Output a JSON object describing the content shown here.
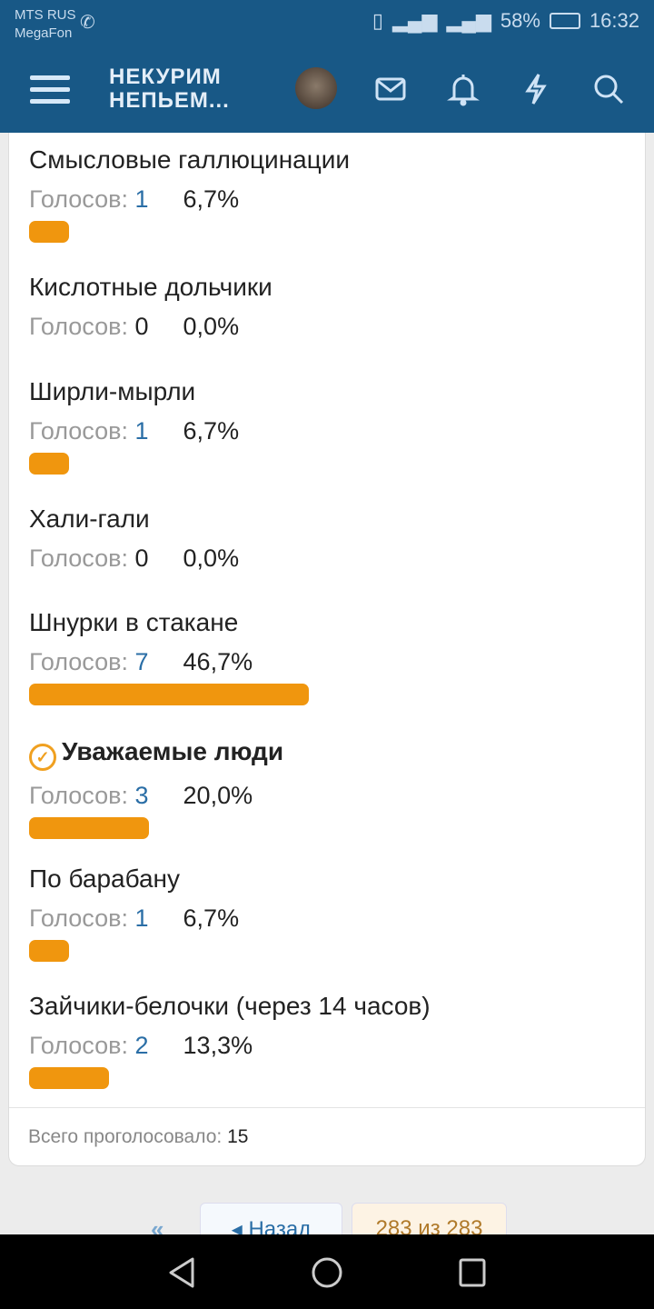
{
  "status": {
    "carrier1": "MTS RUS",
    "carrier2": "MegaFon",
    "battery": "58%",
    "time": "16:32"
  },
  "header": {
    "logo_line1": "НЕКУРИМ",
    "logo_line2": "НЕПЬЕМ..."
  },
  "poll": {
    "votes_label": "Голосов:",
    "options": [
      {
        "title": "Смысловые галлюцинации",
        "votes": "1",
        "percent": "6,7%",
        "value": 6.7
      },
      {
        "title": "Кислотные дольчики",
        "votes": "0",
        "percent": "0,0%",
        "value": 0
      },
      {
        "title": "Ширли-мырли",
        "votes": "1",
        "percent": "6,7%",
        "value": 6.7
      },
      {
        "title": "Хали-гали",
        "votes": "0",
        "percent": "0,0%",
        "value": 0
      },
      {
        "title": "Шнурки в стакане",
        "votes": "7",
        "percent": "46,7%",
        "value": 46.7
      },
      {
        "title": "Уважаемые люди",
        "votes": "3",
        "percent": "20,0%",
        "value": 20.0,
        "selected": true
      },
      {
        "title": "По барабану",
        "votes": "1",
        "percent": "6,7%",
        "value": 6.7
      },
      {
        "title": "Зайчики-белочки (через 14 часов)",
        "votes": "2",
        "percent": "13,3%",
        "value": 13.3
      }
    ],
    "total_label": "Всего проголосовало:",
    "total": "15"
  },
  "pager": {
    "back": "Назад",
    "current": "283 из 283"
  },
  "colors": {
    "header": "#185886",
    "bar": "#f0960e",
    "link": "#2a6ea6"
  }
}
